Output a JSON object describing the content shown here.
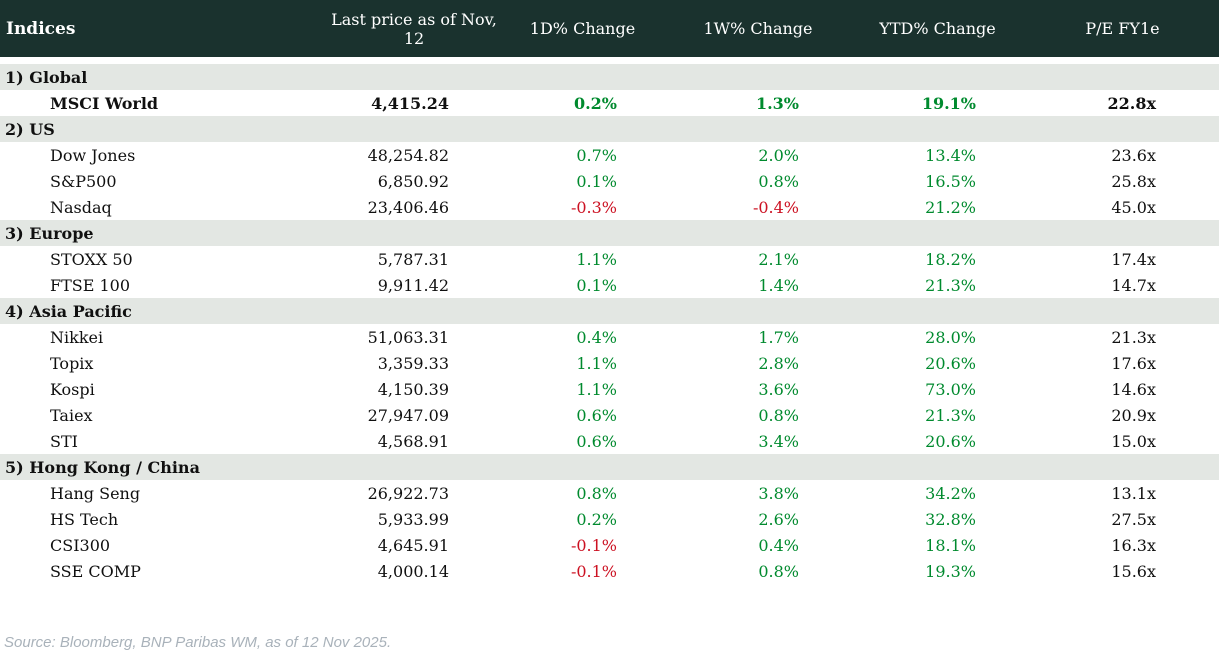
{
  "header": {
    "columns": [
      "Indices",
      "Last price as of Nov, 12",
      "1D% Change",
      "1W% Change",
      "YTD% Change",
      "P/E FY1e"
    ]
  },
  "chart_data": {
    "type": "table",
    "title": "Indices",
    "columns": [
      "Indices",
      "Last price as of Nov, 12",
      "1D% Change",
      "1W% Change",
      "YTD% Change",
      "P/E FY1e"
    ]
  },
  "sections": [
    {
      "label": "1) Global",
      "rows": [
        {
          "name": "MSCI World",
          "price": "4,415.24",
          "d1": "0.2%",
          "w1": "1.3%",
          "ytd": "19.1%",
          "pe": "22.8x",
          "bold": true
        }
      ]
    },
    {
      "label": "2) US",
      "rows": [
        {
          "name": "Dow Jones",
          "price": "48,254.82",
          "d1": "0.7%",
          "w1": "2.0%",
          "ytd": "13.4%",
          "pe": "23.6x",
          "bold": false
        },
        {
          "name": "S&P500",
          "price": "6,850.92",
          "d1": "0.1%",
          "w1": "0.8%",
          "ytd": "16.5%",
          "pe": "25.8x",
          "bold": false
        },
        {
          "name": "Nasdaq",
          "price": "23,406.46",
          "d1": "-0.3%",
          "w1": "-0.4%",
          "ytd": "21.2%",
          "pe": "45.0x",
          "bold": false
        }
      ]
    },
    {
      "label": "3) Europe",
      "rows": [
        {
          "name": "STOXX 50",
          "price": "5,787.31",
          "d1": "1.1%",
          "w1": "2.1%",
          "ytd": "18.2%",
          "pe": "17.4x",
          "bold": false
        },
        {
          "name": "FTSE 100",
          "price": "9,911.42",
          "d1": "0.1%",
          "w1": "1.4%",
          "ytd": "21.3%",
          "pe": "14.7x",
          "bold": false
        }
      ]
    },
    {
      "label": "4) Asia Pacific",
      "rows": [
        {
          "name": "Nikkei",
          "price": "51,063.31",
          "d1": "0.4%",
          "w1": "1.7%",
          "ytd": "28.0%",
          "pe": "21.3x",
          "bold": false
        },
        {
          "name": "Topix",
          "price": "3,359.33",
          "d1": "1.1%",
          "w1": "2.8%",
          "ytd": "20.6%",
          "pe": "17.6x",
          "bold": false
        },
        {
          "name": "Kospi",
          "price": "4,150.39",
          "d1": "1.1%",
          "w1": "3.6%",
          "ytd": "73.0%",
          "pe": "14.6x",
          "bold": false
        },
        {
          "name": "Taiex",
          "price": "27,947.09",
          "d1": "0.6%",
          "w1": "0.8%",
          "ytd": "21.3%",
          "pe": "20.9x",
          "bold": false
        },
        {
          "name": "STI",
          "price": "4,568.91",
          "d1": "0.6%",
          "w1": "3.4%",
          "ytd": "20.6%",
          "pe": "15.0x",
          "bold": false
        }
      ]
    },
    {
      "label": "5) Hong Kong / China",
      "rows": [
        {
          "name": "Hang Seng",
          "price": "26,922.73",
          "d1": "0.8%",
          "w1": "3.8%",
          "ytd": "34.2%",
          "pe": "13.1x",
          "bold": false
        },
        {
          "name": "HS Tech",
          "price": "5,933.99",
          "d1": "0.2%",
          "w1": "2.6%",
          "ytd": "32.8%",
          "pe": "27.5x",
          "bold": false
        },
        {
          "name": "CSI300",
          "price": "4,645.91",
          "d1": "-0.1%",
          "w1": "0.4%",
          "ytd": "18.1%",
          "pe": "16.3x",
          "bold": false
        },
        {
          "name": "SSE COMP",
          "price": "4,000.14",
          "d1": "-0.1%",
          "w1": "0.8%",
          "ytd": "19.3%",
          "pe": "15.6x",
          "bold": false
        }
      ]
    }
  ],
  "footer": {
    "source": "Source: Bloomberg, BNP Paribas WM, as of 12 Nov 2025."
  },
  "colors": {
    "header_bg": "#1a322e",
    "band_bg": "#e3e7e3",
    "positive": "#008a2e",
    "negative": "#cc1122",
    "source_text": "#a9b2ba"
  }
}
